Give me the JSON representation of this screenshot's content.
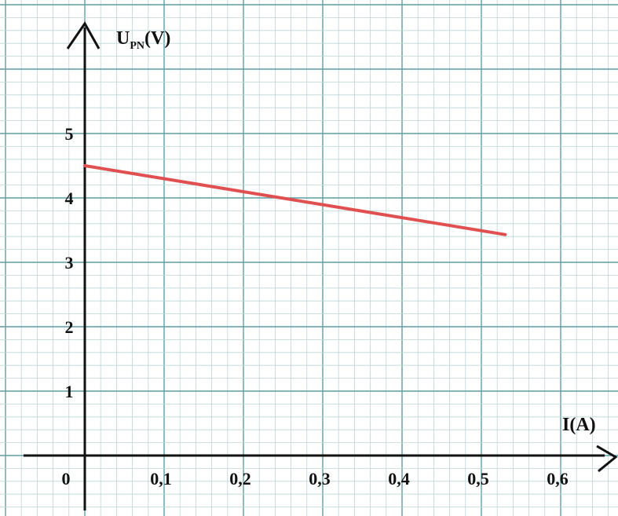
{
  "chart_data": {
    "type": "line",
    "xlabel": "I(A)",
    "ylabel": {
      "main": "U",
      "sub": "PN",
      "unit": "(V)"
    },
    "x_ticks": [
      {
        "value": 0,
        "label": "0"
      },
      {
        "value": 0.1,
        "label": "0,1"
      },
      {
        "value": 0.2,
        "label": "0,2"
      },
      {
        "value": 0.3,
        "label": "0,3"
      },
      {
        "value": 0.4,
        "label": "0,4"
      },
      {
        "value": 0.5,
        "label": "0,5"
      },
      {
        "value": 0.6,
        "label": "0,6"
      }
    ],
    "y_ticks": [
      {
        "value": 1,
        "label": "1"
      },
      {
        "value": 2,
        "label": "2"
      },
      {
        "value": 3,
        "label": "3"
      },
      {
        "value": 4,
        "label": "4"
      },
      {
        "value": 5,
        "label": "5"
      }
    ],
    "xlim": [
      0,
      0.67
    ],
    "ylim": [
      0,
      6.6
    ],
    "grid": true,
    "series": [
      {
        "x": [
          0,
          0.53
        ],
        "y": [
          4.5,
          3.43
        ],
        "color": "#e05050"
      }
    ],
    "colors": {
      "grid_minor": "#bcd6d6",
      "grid_major": "#5f9ea6",
      "axis": "#111111",
      "line": "#e05050"
    }
  }
}
